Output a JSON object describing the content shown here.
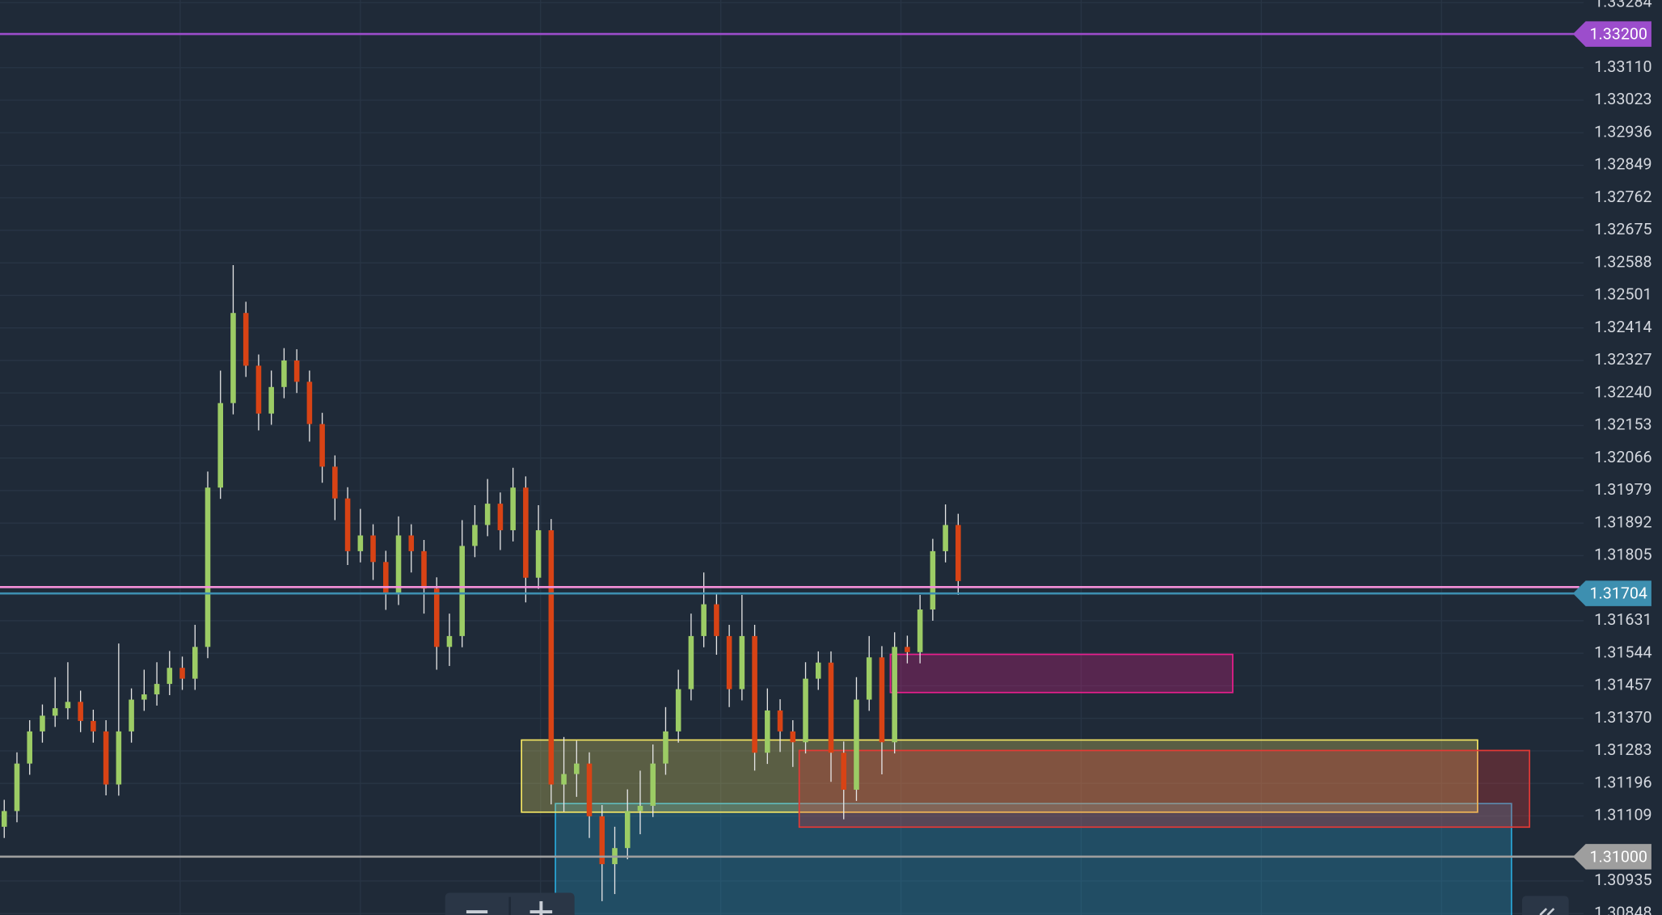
{
  "chart_data": {
    "type": "candlestick",
    "up_color": "#9ccc65",
    "down_color": "#d84315",
    "wick_color": "#e6e6e6",
    "grid": true,
    "ylim": [
      1.30844,
      1.33291
    ],
    "yticks": [
      1.33284,
      {
        "value": 1.3311,
        "label": "1.33110"
      },
      1.33023,
      1.32936,
      1.32849,
      1.32762,
      1.32675,
      1.32588,
      1.32501,
      1.32414,
      1.32327,
      {
        "value": 1.3224,
        "label": "1.32240"
      },
      1.32153,
      1.32066,
      1.31979,
      1.31892,
      1.31805,
      1.31631,
      1.31544,
      1.31457,
      {
        "value": 1.3137,
        "label": "1.31370"
      },
      1.31283,
      1.31196,
      1.31109,
      1.30935,
      1.30848
    ],
    "series": {
      "open": [
        1.3108,
        1.31122,
        1.31249,
        1.31335,
        1.31377,
        1.31397,
        1.31414,
        1.31363,
        1.31335,
        1.31193,
        1.31335,
        1.3142,
        1.31434,
        1.31462,
        1.31505,
        1.31476,
        1.31561,
        1.31987,
        1.32213,
        1.32454,
        1.32313,
        1.32185,
        1.32256,
        1.32327,
        1.3227,
        1.32157,
        1.32043,
        1.31958,
        1.31817,
        1.31859,
        1.31788,
        1.31703,
        1.31859,
        1.31817,
        1.31717,
        1.31561,
        1.3159,
        1.31831,
        1.31887,
        1.31944,
        1.31873,
        1.31987,
        1.31746,
        1.31873,
        1.31193,
        1.31221,
        1.31249,
        1.31108,
        1.3098,
        1.31023,
        1.31122,
        1.31136,
        1.31249,
        1.31335,
        1.31448,
        1.3159,
        1.31675,
        1.3159,
        1.31448,
        1.3159,
        1.31278,
        1.31391,
        1.31335,
        1.31306,
        1.31476,
        1.31519,
        1.31278,
        1.31179,
        1.3142,
        1.31533,
        1.31306,
        1.31561,
        1.31547,
        1.31661,
        1.31817,
        1.31887
      ],
      "high": [
        1.31152,
        1.31279,
        1.31365,
        1.31407,
        1.3148,
        1.3152,
        1.31444,
        1.31393,
        1.31365,
        1.3157,
        1.3145,
        1.315,
        1.3152,
        1.3155,
        1.31535,
        1.3162,
        1.3203,
        1.323,
        1.32582,
        1.32484,
        1.32343,
        1.323,
        1.3236,
        1.32357,
        1.323,
        1.32187,
        1.32073,
        1.31988,
        1.3193,
        1.31889,
        1.31818,
        1.3191,
        1.31889,
        1.31847,
        1.31747,
        1.3165,
        1.319,
        1.3194,
        1.3201,
        1.31974,
        1.3204,
        1.32017,
        1.3194,
        1.31903,
        1.3132,
        1.3131,
        1.31279,
        1.31138,
        1.3108,
        1.3118,
        1.3123,
        1.313,
        1.314,
        1.315,
        1.3165,
        1.3176,
        1.31705,
        1.3162,
        1.317,
        1.3162,
        1.3145,
        1.31421,
        1.31365,
        1.3152,
        1.31549,
        1.31549,
        1.31308,
        1.3148,
        1.3159,
        1.31563,
        1.316,
        1.31591,
        1.317,
        1.3185,
        1.31942,
        1.31917
      ],
      "low": [
        1.3105,
        1.31092,
        1.31219,
        1.31305,
        1.31347,
        1.31367,
        1.31333,
        1.31305,
        1.31164,
        1.31163,
        1.31305,
        1.3139,
        1.31404,
        1.31432,
        1.31446,
        1.31446,
        1.31531,
        1.31957,
        1.32183,
        1.32283,
        1.3214,
        1.32155,
        1.32226,
        1.3224,
        1.3211,
        1.32,
        1.319,
        1.3178,
        1.31787,
        1.3174,
        1.3166,
        1.31673,
        1.3176,
        1.3165,
        1.315,
        1.3151,
        1.3156,
        1.31801,
        1.31857,
        1.3182,
        1.31843,
        1.3168,
        1.31716,
        1.3114,
        1.3112,
        1.3116,
        1.3105,
        1.30881,
        1.309,
        1.30993,
        1.3106,
        1.31106,
        1.31219,
        1.31305,
        1.31418,
        1.3156,
        1.3154,
        1.314,
        1.31418,
        1.3123,
        1.31248,
        1.3128,
        1.3124,
        1.31276,
        1.31446,
        1.312,
        1.311,
        1.31149,
        1.3139,
        1.3122,
        1.31276,
        1.31517,
        1.31517,
        1.31631,
        1.31787,
        1.317
      ],
      "close": [
        1.31122,
        1.31249,
        1.31335,
        1.31377,
        1.31397,
        1.31414,
        1.31363,
        1.31335,
        1.31193,
        1.31335,
        1.3142,
        1.31434,
        1.31462,
        1.31505,
        1.31476,
        1.31561,
        1.31987,
        1.32213,
        1.32454,
        1.32313,
        1.32185,
        1.32256,
        1.32327,
        1.3227,
        1.32157,
        1.32043,
        1.31958,
        1.31817,
        1.31859,
        1.31788,
        1.31703,
        1.31859,
        1.31817,
        1.31717,
        1.31561,
        1.3159,
        1.31831,
        1.31887,
        1.31944,
        1.31873,
        1.31987,
        1.31746,
        1.31873,
        1.31193,
        1.31221,
        1.31249,
        1.31108,
        1.3098,
        1.31023,
        1.31122,
        1.31136,
        1.31249,
        1.31335,
        1.31448,
        1.3159,
        1.31675,
        1.3159,
        1.31448,
        1.3159,
        1.31278,
        1.31391,
        1.31335,
        1.31306,
        1.31476,
        1.31519,
        1.31278,
        1.31179,
        1.3142,
        1.31533,
        1.31306,
        1.31561,
        1.31547,
        1.31661,
        1.31817,
        1.31887,
        1.31737
      ]
    },
    "price_lines": [
      {
        "price": 1.332,
        "label": "1.33200",
        "color": "#9c4dcc"
      },
      {
        "price": 1.31721,
        "color": "#f48fd8"
      },
      {
        "price": 1.31704,
        "label": "1.31704",
        "color": "#3d8fb0"
      },
      {
        "price": 1.31,
        "label": "1.31000",
        "color": "#9e9e9e"
      }
    ],
    "zones": [
      {
        "top": 1.31142,
        "bottom": 1.308,
        "color": "#29a8d8"
      },
      {
        "top": 1.31312,
        "bottom": 1.31119,
        "color": "#f5e663"
      },
      {
        "top": 1.31284,
        "bottom": 1.31079,
        "color": "#e53935"
      },
      {
        "top": 1.31541,
        "bottom": 1.31439,
        "color": "#e91e8c"
      }
    ]
  }
}
